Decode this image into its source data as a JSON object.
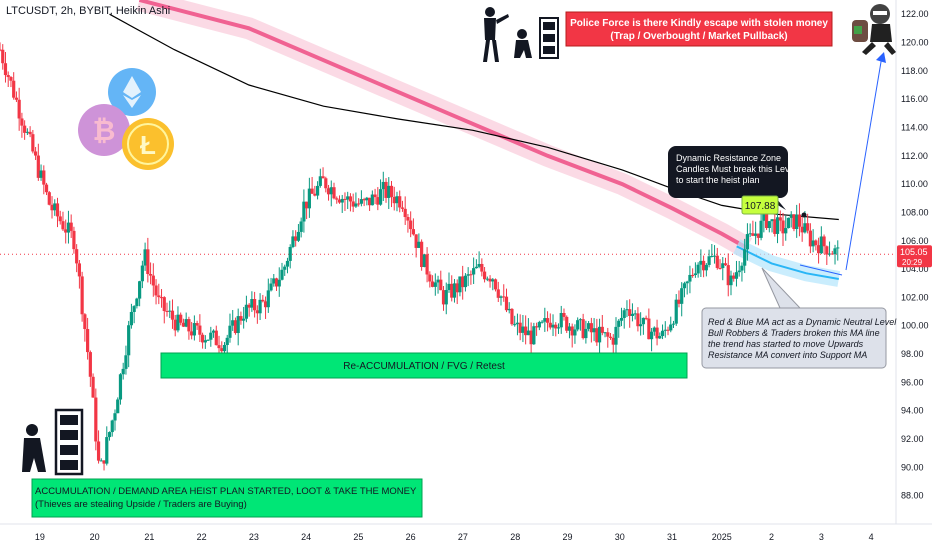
{
  "chart_data": {
    "type": "candlestick",
    "title": "LTCUSDT, 2h, BYBIT, Heikin Ashi",
    "y_axis": {
      "position": "right",
      "ylim": [
        86,
        123
      ],
      "ticks": [
        "88.00",
        "90.00",
        "92.00",
        "94.00",
        "96.00",
        "98.00",
        "100.00",
        "102.00",
        "104.00",
        "106.00",
        "108.00",
        "110.00",
        "112.00",
        "114.00",
        "116.00",
        "118.00",
        "120.00",
        "122.00"
      ],
      "tick_values": [
        88,
        90,
        92,
        94,
        96,
        98,
        100,
        102,
        104,
        106,
        108,
        110,
        112,
        114,
        116,
        118,
        120,
        122
      ]
    },
    "x_axis": {
      "ticks": [
        "19",
        "20",
        "21",
        "22",
        "23",
        "24",
        "25",
        "26",
        "27",
        "28",
        "29",
        "30",
        "31",
        "2025",
        "2",
        "3",
        "4"
      ],
      "tick_positions": [
        0.8,
        1.9,
        3,
        4.05,
        5.1,
        6.15,
        7.2,
        8.25,
        9.3,
        10.35,
        11.4,
        12.45,
        13.5,
        14.5,
        15.5,
        16.5,
        17.5
      ],
      "xlim": [
        0,
        18
      ]
    },
    "last_price": {
      "value": 105.05,
      "label": "105.05",
      "countdown": "20:29",
      "color": "#f23645"
    },
    "up_color": "#089981",
    "down_color": "#f23645",
    "candles_path": [
      [
        0.0,
        119.5
      ],
      [
        0.5,
        114.0
      ],
      [
        1.0,
        108.5
      ],
      [
        1.5,
        106.0
      ],
      [
        1.8,
        97.0
      ],
      [
        2.0,
        89.5
      ],
      [
        2.3,
        94.0
      ],
      [
        2.6,
        100.0
      ],
      [
        2.9,
        105.0
      ],
      [
        3.2,
        101.5
      ],
      [
        3.6,
        100.0
      ],
      [
        4.0,
        99.5
      ],
      [
        4.5,
        98.8
      ],
      [
        4.9,
        101.0
      ],
      [
        5.3,
        101.6
      ],
      [
        5.7,
        104.0
      ],
      [
        6.1,
        108.5
      ],
      [
        6.5,
        110.2
      ],
      [
        6.9,
        109.0
      ],
      [
        7.3,
        108.5
      ],
      [
        7.7,
        109.5
      ],
      [
        8.1,
        108.8
      ],
      [
        8.5,
        104.5
      ],
      [
        8.9,
        102.0
      ],
      [
        9.3,
        103.0
      ],
      [
        9.6,
        104.0
      ],
      [
        9.9,
        103.5
      ],
      [
        10.3,
        100.0
      ],
      [
        10.7,
        99.2
      ],
      [
        11.1,
        100.6
      ],
      [
        11.5,
        100.0
      ],
      [
        11.9,
        99.5
      ],
      [
        12.3,
        99.0
      ],
      [
        12.6,
        101.5
      ],
      [
        12.9,
        100.0
      ],
      [
        13.3,
        99.2
      ],
      [
        13.7,
        102.0
      ],
      [
        14.0,
        104.5
      ],
      [
        14.4,
        104.8
      ],
      [
        14.7,
        103.0
      ],
      [
        15.0,
        105.8
      ],
      [
        15.4,
        107.5
      ],
      [
        15.7,
        106.8
      ],
      [
        16.0,
        107.5
      ],
      [
        16.3,
        106.0
      ],
      [
        16.6,
        105.6
      ],
      [
        16.85,
        105.05
      ]
    ],
    "series": [
      {
        "label": "black MA",
        "color": "#000000",
        "points": [
          [
            2.2,
            122
          ],
          [
            3.5,
            119.5
          ],
          [
            5.0,
            117.0
          ],
          [
            6.5,
            115.5
          ],
          [
            8.0,
            114.6
          ],
          [
            9.5,
            113.8
          ],
          [
            11.0,
            112.6
          ],
          [
            12.5,
            111.0
          ],
          [
            13.5,
            109.7
          ],
          [
            14.5,
            108.5
          ],
          [
            15.5,
            107.9
          ],
          [
            16.85,
            107.5
          ]
        ]
      },
      {
        "label": "red MA",
        "color": "#f23645",
        "points": [
          [
            2.8,
            123
          ],
          [
            5.0,
            121.0
          ],
          [
            7.0,
            118.0
          ],
          [
            9.0,
            115.0
          ],
          [
            11.0,
            112.0
          ],
          [
            12.5,
            110.0
          ],
          [
            13.5,
            108.3
          ],
          [
            14.5,
            106.5
          ],
          [
            15.0,
            105.5
          ]
        ]
      },
      {
        "label": "blue MA",
        "color": "#29b6f6",
        "points": [
          [
            14.8,
            105.6
          ],
          [
            15.5,
            104.4
          ],
          [
            16.2,
            103.7
          ],
          [
            16.85,
            103.3
          ]
        ]
      }
    ],
    "annotations": [
      {
        "id": "police",
        "text_lines": [
          "Police Force is there Kindly escape with stolen money",
          "(Trap / Overbought / Market Pullback)"
        ],
        "bg": "#f23645",
        "color": "#ffffff"
      },
      {
        "id": "resistance",
        "text_lines": [
          "Dynamic Resistance Zone",
          "Candles Must break this Level",
          "to start the heist plan"
        ],
        "bg": "#131722",
        "color": "#ffffff"
      },
      {
        "id": "price_tag",
        "text": "107.88",
        "bg": "#c6ff3d",
        "color": "#131722"
      },
      {
        "id": "ma_note",
        "text_lines": [
          "Red & Blue MA act as a Dynamic Neutral Level",
          "Bull Robbers & Traders broken this MA line",
          "the trend has started to move Upwards",
          "Resistance MA convert into Support MA"
        ],
        "bg": "#dde1ea",
        "color": "#131722"
      },
      {
        "id": "reaccum",
        "text": "Re-ACCUMULATION / FVG / Retest",
        "bg": "#00e676",
        "color": "#131722"
      },
      {
        "id": "accum",
        "text_lines": [
          "ACCUMULATION / DEMAND AREA HEIST PLAN STARTED, LOOT & TAKE THE MONEY",
          "(Thieves are stealing Upside / Traders are Buying)"
        ],
        "bg": "#00e676",
        "color": "#131722"
      }
    ],
    "icons": [
      "police-officer-icon",
      "robber-with-safe-icon",
      "crypto-coins-icon",
      "running-thief-icon"
    ]
  }
}
